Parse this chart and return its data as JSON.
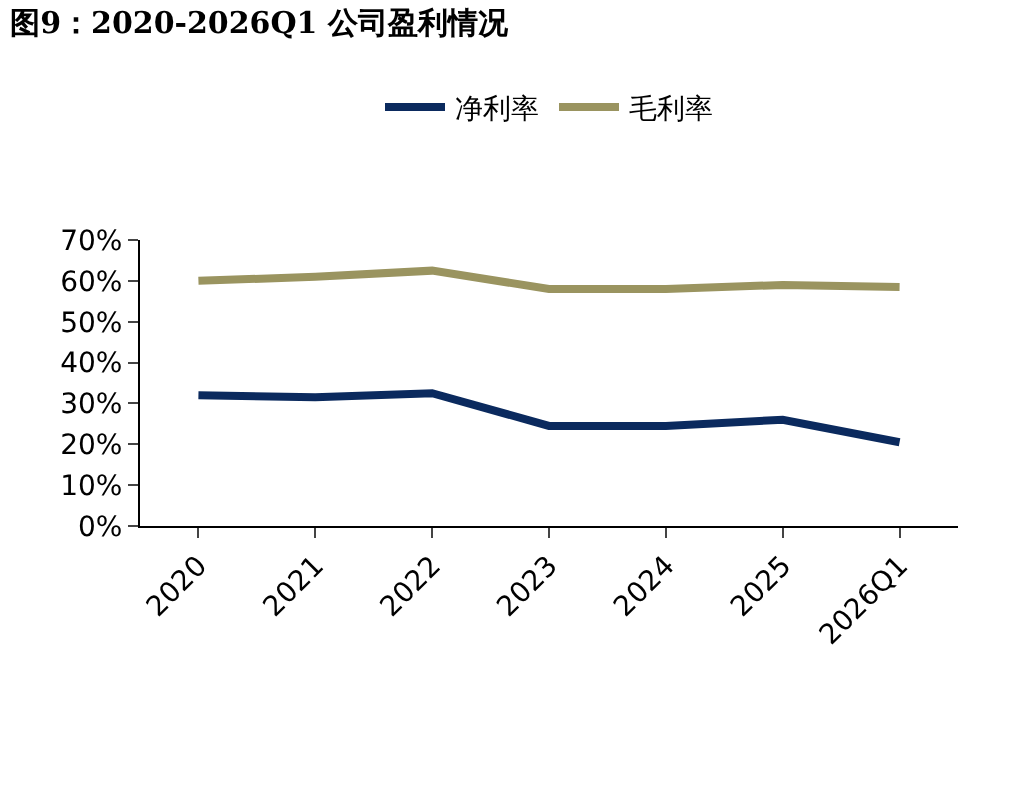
{
  "chart_data": {
    "type": "line",
    "title": "图9：2020-2026Q1 公司盈利情况",
    "categories": [
      "2020",
      "2021",
      "2022",
      "2023",
      "2024",
      "2025",
      "2026Q1"
    ],
    "series": [
      {
        "name": "净利率",
        "color": "#0b2a5e",
        "values": [
          32,
          31.5,
          32.5,
          24.5,
          24.5,
          26,
          20.5
        ]
      },
      {
        "name": "毛利率",
        "color": "#9a9460",
        "values": [
          60,
          61,
          62.5,
          58,
          58,
          59,
          58.5
        ]
      }
    ],
    "ylim": [
      0,
      70
    ],
    "yticks": [
      {
        "value": 0,
        "label": "0%"
      },
      {
        "value": 10,
        "label": "10%"
      },
      {
        "value": 20,
        "label": "20%"
      },
      {
        "value": 30,
        "label": "30%"
      },
      {
        "value": 40,
        "label": "40%"
      },
      {
        "value": 50,
        "label": "50%"
      },
      {
        "value": 60,
        "label": "60%"
      },
      {
        "value": 70,
        "label": "70%"
      }
    ],
    "legend": "top",
    "marker": "none",
    "line_style": "solid"
  }
}
